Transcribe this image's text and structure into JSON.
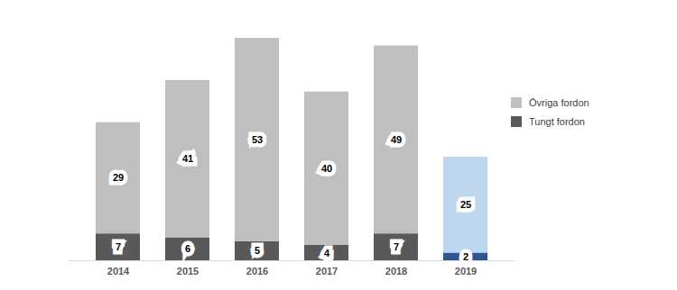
{
  "chart_data": {
    "type": "bar",
    "stacked": true,
    "data_labels": true,
    "tick_labels": "x",
    "legend": "right",
    "categories": [
      "2014",
      "2015",
      "2016",
      "2017",
      "2018",
      "2019"
    ],
    "ylim": [
      0,
      58
    ],
    "series": [
      {
        "name": "Tungt fordon",
        "color": "#595959",
        "colors": [
          "#595959",
          "#595959",
          "#595959",
          "#595959",
          "#595959",
          "#2f5597"
        ],
        "values": [
          7,
          6,
          5,
          4,
          7,
          2
        ]
      },
      {
        "name": "Övriga fordon",
        "color": "#bfbfbf",
        "colors": [
          "#bfbfbf",
          "#bfbfbf",
          "#bfbfbf",
          "#bfbfbf",
          "#bfbfbf",
          "#bdd7ee"
        ],
        "values": [
          29,
          41,
          53,
          40,
          49,
          25
        ]
      }
    ]
  }
}
